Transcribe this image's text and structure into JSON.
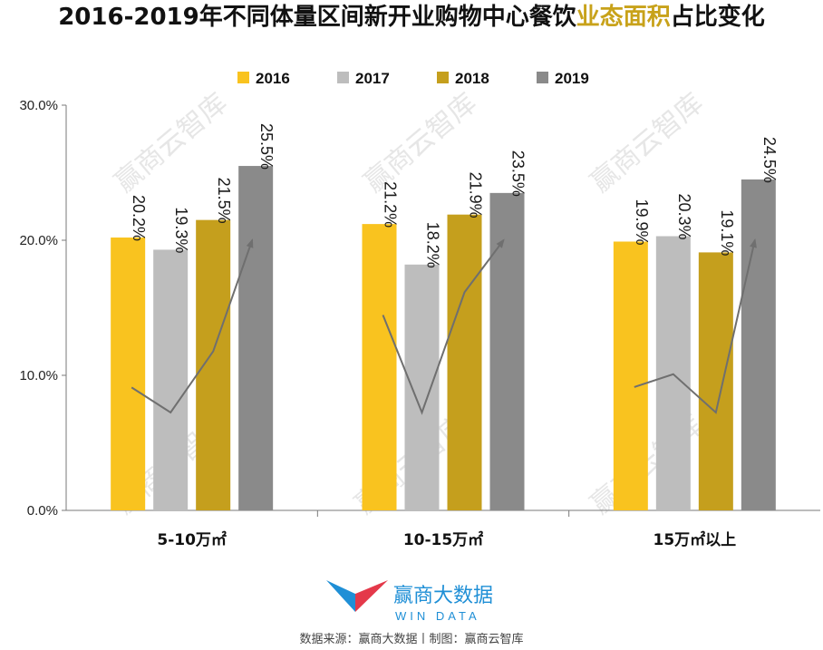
{
  "title": {
    "prefix": "2016-2019年不同体量区间新开业购物中心餐饮",
    "highlight": "业态面积",
    "suffix": "占比变化"
  },
  "colors": {
    "2016": "#f9c31f",
    "2017": "#bdbdbd",
    "2018": "#c59f1d",
    "2019": "#8a8a8a",
    "title_highlight": "#c8a21a",
    "trend_line": "#6f6f6f",
    "logo_blue": "#1f8fd6",
    "logo_red": "#e4394a"
  },
  "watermark": "赢商云智库",
  "logo": {
    "name": "赢商大数据",
    "sub": "WIN DATA"
  },
  "source": "数据来源：赢商大数据丨制图：赢商云智库",
  "chart_data": {
    "type": "bar",
    "categories": [
      "5-10万㎡",
      "10-15万㎡",
      "15万㎡以上"
    ],
    "series": [
      {
        "name": "2016",
        "values": [
          20.2,
          21.2,
          19.9
        ]
      },
      {
        "name": "2017",
        "values": [
          19.3,
          18.2,
          20.3
        ]
      },
      {
        "name": "2018",
        "values": [
          21.5,
          21.9,
          19.1
        ]
      },
      {
        "name": "2019",
        "values": [
          25.5,
          23.5,
          24.5
        ]
      }
    ],
    "value_labels": [
      [
        "20.2%",
        "21.2%",
        "19.9%"
      ],
      [
        "19.3%",
        "18.2%",
        "20.3%"
      ],
      [
        "21.5%",
        "21.9%",
        "19.1%"
      ],
      [
        "25.5%",
        "23.5%",
        "24.5%"
      ]
    ],
    "yticks": [
      "0.0%",
      "10.0%",
      "20.0%",
      "30.0%"
    ],
    "ylim": [
      0,
      30
    ],
    "grid": false,
    "legend_position": "top",
    "annotations": "trend arrows across bars within each group"
  }
}
